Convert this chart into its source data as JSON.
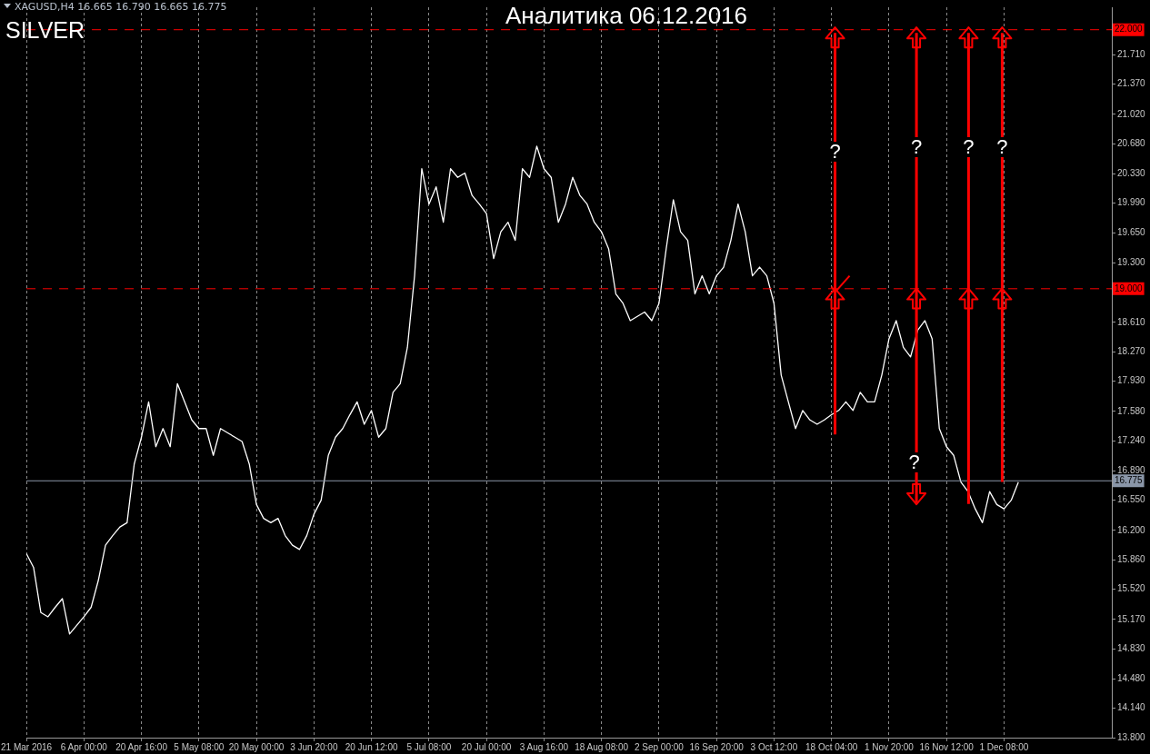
{
  "chart_data": {
    "type": "line",
    "title": "Аналитика 06.12.2016",
    "subtitle": "SILVER",
    "annotations": [
      "XAGUSD,H4  16.665 16.790 16.665 16.775",
      "?",
      "?",
      "?",
      "?",
      "?"
    ],
    "categories": [
      "21 Mar 2016",
      null,
      null,
      null,
      null,
      null,
      null,
      null,
      "6 Apr 00:00",
      null,
      null,
      null,
      null,
      null,
      null,
      null,
      "20 Apr 16:00",
      null,
      null,
      null,
      null,
      null,
      null,
      null,
      "5 May 08:00",
      null,
      null,
      null,
      null,
      null,
      null,
      null,
      "20 May 00:00",
      null,
      null,
      null,
      null,
      null,
      null,
      null,
      "3 Jun 20:00",
      null,
      null,
      null,
      null,
      null,
      null,
      null,
      "20 Jun 12:00",
      null,
      null,
      null,
      null,
      null,
      null,
      null,
      "5 Jul 08:00",
      null,
      null,
      null,
      null,
      null,
      null,
      null,
      "20 Jul 00:00",
      null,
      null,
      null,
      null,
      null,
      null,
      null,
      "3 Aug 16:00",
      null,
      null,
      null,
      null,
      null,
      null,
      null,
      "18 Aug 08:00",
      null,
      null,
      null,
      null,
      null,
      null,
      null,
      "2 Sep 00:00",
      null,
      null,
      null,
      null,
      null,
      null,
      null,
      "16 Sep 20:00",
      null,
      null,
      null,
      null,
      null,
      null,
      null,
      "3 Oct 12:00",
      null,
      null,
      null,
      null,
      null,
      null,
      null,
      "18 Oct 04:00",
      null,
      null,
      null,
      null,
      null,
      null,
      null,
      "1 Nov 20:00",
      null,
      null,
      null,
      null,
      null,
      null,
      null,
      "16 Nov 12:00",
      null,
      null,
      null,
      null,
      null,
      null,
      null,
      "1 Dec 08:00",
      null,
      null,
      null,
      null,
      null,
      null,
      null,
      null,
      null,
      null,
      null,
      null,
      null,
      null,
      null
    ],
    "series": [
      {
        "color": "#ffffff",
        "values": [
          15.93,
          15.77,
          15.25,
          15.2,
          15.31,
          15.41,
          15.0,
          15.1,
          15.2,
          15.31,
          15.62,
          16.03,
          16.14,
          16.24,
          16.29,
          16.97,
          17.28,
          17.69,
          17.17,
          17.38,
          17.17,
          17.9,
          17.69,
          17.48,
          17.38,
          17.38,
          17.07,
          17.38,
          17.33,
          17.28,
          17.23,
          16.97,
          16.5,
          16.34,
          16.29,
          16.34,
          16.14,
          16.03,
          15.98,
          16.14,
          16.39,
          16.55,
          17.07,
          17.28,
          17.38,
          17.54,
          17.69,
          17.43,
          17.59,
          17.28,
          17.38,
          17.8,
          17.9,
          18.32,
          19.15,
          20.39,
          19.98,
          20.18,
          19.77,
          20.39,
          20.29,
          20.34,
          20.08,
          19.98,
          19.87,
          19.35,
          19.66,
          19.77,
          19.56,
          20.39,
          20.29,
          20.65,
          20.39,
          20.29,
          19.77,
          19.98,
          20.29,
          20.08,
          19.98,
          19.77,
          19.66,
          19.46,
          18.94,
          18.83,
          18.63,
          18.68,
          18.73,
          18.63,
          18.83,
          19.46,
          20.03,
          19.66,
          19.56,
          18.94,
          19.15,
          18.94,
          19.15,
          19.25,
          19.56,
          19.98,
          19.66,
          19.15,
          19.25,
          19.15,
          18.83,
          18.0,
          17.69,
          17.38,
          17.59,
          17.48,
          17.43,
          17.48,
          17.54,
          17.59,
          17.69,
          17.59,
          17.8,
          17.69,
          17.69,
          18.0,
          18.42,
          18.63,
          18.32,
          18.21,
          18.52,
          18.63,
          18.42,
          17.38,
          17.17,
          17.07,
          16.76,
          16.65,
          16.45,
          16.29,
          16.65,
          16.5,
          16.45,
          16.55,
          16.76,
          null,
          null,
          null,
          null,
          null,
          null,
          null,
          null,
          null,
          null,
          null,
          null,
          null
        ]
      }
    ],
    "ylim": [
      13.8,
      22.26
    ],
    "yticks": [
      {
        "value": 13.8,
        "label": "13.800"
      },
      {
        "value": 14.14,
        "label": "14.140"
      },
      {
        "value": 14.48,
        "label": "14.480"
      },
      {
        "value": 14.83,
        "label": "14.830"
      },
      {
        "value": 15.17,
        "label": "15.170"
      },
      {
        "value": 15.52,
        "label": "15.520"
      },
      {
        "value": 15.86,
        "label": "15.860"
      },
      {
        "value": 16.2,
        "label": "16.200"
      },
      {
        "value": 16.55,
        "label": "16.550"
      },
      {
        "value": 16.89,
        "label": "16.890"
      },
      {
        "value": 17.24,
        "label": "17.240"
      },
      {
        "value": 17.58,
        "label": "17.580"
      },
      {
        "value": 17.93,
        "label": "17.930"
      },
      {
        "value": 18.27,
        "label": "18.270"
      },
      {
        "value": 18.61,
        "label": "18.610"
      },
      {
        "value": 19.3,
        "label": "19.300"
      },
      {
        "value": 19.65,
        "label": "19.650"
      },
      {
        "value": 19.99,
        "label": "19.990"
      },
      {
        "value": 20.33,
        "label": "20.330"
      },
      {
        "value": 20.68,
        "label": "20.680"
      },
      {
        "value": 21.02,
        "label": "21.020"
      },
      {
        "value": 21.37,
        "label": "21.370"
      },
      {
        "value": 21.71,
        "label": "21.710"
      }
    ],
    "ref_lines": [
      {
        "axis": "y",
        "value": 22,
        "label": "22.000",
        "color": "#ff0000",
        "line_style": "dashed"
      },
      {
        "axis": "y",
        "value": 19,
        "label": "19.000",
        "color": "#ff0000",
        "line_style": "dashed"
      },
      {
        "axis": "y",
        "value": 16.775,
        "label": "16.775",
        "color": "#8a96a8",
        "line_style": "solid"
      }
    ],
    "grid": "x",
    "legend": false,
    "marker": "none",
    "line_style": "solid"
  }
}
